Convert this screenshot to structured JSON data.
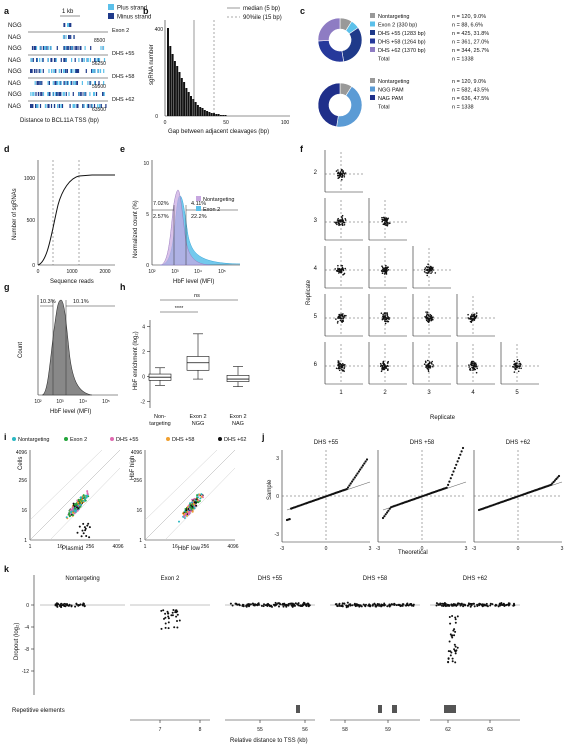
{
  "panels": {
    "a": {
      "letter": "a",
      "legend": [
        "Plus strand",
        "Minus strand"
      ],
      "scale_label": "1 kb",
      "rows": [
        {
          "region": "Exon 2",
          "end": "8500"
        },
        {
          "region": "DHS +55",
          "end": "56250"
        },
        {
          "region": "DHS +58",
          "end": "59500"
        },
        {
          "region": "DHS +62",
          "end": "63500"
        }
      ],
      "pam_labels": [
        "NGG",
        "NAG"
      ],
      "xlabel": "Distance to BCL11A TSS (bp)"
    },
    "b": {
      "letter": "b",
      "legend": [
        "median (5 bp)",
        "90%ile (15 bp)"
      ],
      "ylabel": "sgRNA number",
      "xlabel": "Gap between adjacent cleavages (bp)",
      "yticks": [
        "0",
        "400"
      ],
      "xticks": [
        "0",
        "50",
        "100"
      ]
    },
    "c": {
      "letter": "c",
      "donut1": [
        {
          "label": "Nontargeting",
          "stat": "n = 120, 9.0%",
          "color": "#999999",
          "value": 120
        },
        {
          "label": "Exon 2 (330 bp)",
          "stat": "n = 88, 6.6%",
          "color": "#5bc0ea",
          "value": 88
        },
        {
          "label": "DHS +55 (1283 bp)",
          "stat": "n = 425, 31.8%",
          "color": "#1f3a8a",
          "value": 425
        },
        {
          "label": "DHS +58 (1264 bp)",
          "stat": "n = 361, 27.0%",
          "color": "#26399b",
          "value": 361
        },
        {
          "label": "DHS +62 (1370 bp)",
          "stat": "n = 344, 25.7%",
          "color": "#8e7cc3",
          "value": 344
        }
      ],
      "donut1_total": {
        "label": "Total",
        "stat": "n = 1338"
      },
      "donut2": [
        {
          "label": "Nontargeting",
          "stat": "n = 120, 9.0%",
          "color": "#999999",
          "value": 120
        },
        {
          "label": "NGG PAM",
          "stat": "n = 582, 43.5%",
          "color": "#5b9bd5",
          "value": 582
        },
        {
          "label": "NAG PAM",
          "stat": "n = 636, 47.5%",
          "color": "#1f2f8a",
          "value": 636
        }
      ],
      "donut2_total": {
        "label": "Total",
        "stat": "n = 1338"
      }
    },
    "d": {
      "letter": "d",
      "ylabel": "Number of sgRNAs",
      "xlabel": "Sequence reads",
      "yticks": [
        "0",
        "500",
        "1000"
      ],
      "xticks": [
        "0",
        "1000",
        "2000"
      ]
    },
    "e": {
      "letter": "e",
      "ylabel": "Normalized count (%)",
      "xlabel": "HbF level (MFI)",
      "legend": [
        "Nontargeting",
        "Exon 2"
      ],
      "annotations": [
        "7.02%",
        "2.57%",
        "4.11%",
        "22.2%"
      ],
      "yticks": [
        "0",
        "5",
        "10"
      ],
      "xticks": [
        "10²",
        "10³",
        "10⁴",
        "10⁵"
      ]
    },
    "f": {
      "letter": "f",
      "ylabel": "Replicate",
      "xlabel": "Replicate",
      "row_labels": [
        "2",
        "3",
        "4",
        "5",
        "6"
      ],
      "col_labels": [
        "1",
        "2",
        "3",
        "4",
        "5"
      ]
    },
    "g": {
      "letter": "g",
      "ylabel": "Count",
      "xlabel": "HbF level (MFI)",
      "annotations": [
        "10.3%",
        "10.1%"
      ],
      "xticks": [
        "10²",
        "10³",
        "10⁴",
        "10⁵"
      ]
    },
    "h": {
      "letter": "h",
      "ylabel": "HbF enrichment (log₂)",
      "yticks": [
        "-2",
        "0",
        "2",
        "4"
      ],
      "categories": [
        "Non-\ntargeting",
        "Exon 2\nNGG",
        "Exon 2\nNAG"
      ],
      "sig": [
        "ns",
        "****"
      ],
      "boxes": [
        {
          "q1": -0.3,
          "median": -0.05,
          "q3": 0.2,
          "lo": -0.7,
          "hi": 0.7
        },
        {
          "q1": 0.5,
          "median": 1.1,
          "q3": 1.6,
          "lo": -0.2,
          "hi": 3.4
        },
        {
          "q1": -0.4,
          "median": -0.2,
          "q3": 0.1,
          "lo": -0.8,
          "hi": 0.8
        }
      ]
    },
    "i": {
      "letter": "i",
      "legend": [
        "Nontargeting",
        "Exon 2",
        "DHS +55",
        "DHS +58",
        "DHS +62"
      ],
      "legend_colors": [
        "#2ab7c2",
        "#23a53b",
        "#e06ab0",
        "#f0a030",
        "#111111"
      ],
      "left": {
        "ylabel": "Cells",
        "xlabel": "Plasmid"
      },
      "right": {
        "ylabel": "HbF high",
        "xlabel": "HbF low"
      },
      "ticks": [
        "1",
        "16",
        "256",
        "4096"
      ]
    },
    "j": {
      "letter": "j",
      "titles": [
        "DHS +55",
        "DHS +58",
        "DHS +62"
      ],
      "ylabel": "Sample",
      "xlabel": "Theoretical",
      "yticks": [
        "3",
        "0",
        "-3"
      ],
      "xticks": [
        "-3",
        "0",
        "3"
      ]
    },
    "k": {
      "letter": "k",
      "titles": [
        "Nontargeting",
        "Exon 2",
        "DHS +55",
        "DHS +58",
        "DHS +62"
      ],
      "ylabel": "Dropout (log₂)",
      "yticks": [
        "0",
        "-4",
        "-8",
        "-12"
      ],
      "repeat_label": "Repetitive elements",
      "xlabel": "Relative distance to TSS (kb)",
      "xticks": [
        [
          "7",
          "8"
        ],
        [
          "55",
          "56"
        ],
        [
          "58",
          "59"
        ],
        [
          "62",
          "63"
        ]
      ]
    }
  }
}
